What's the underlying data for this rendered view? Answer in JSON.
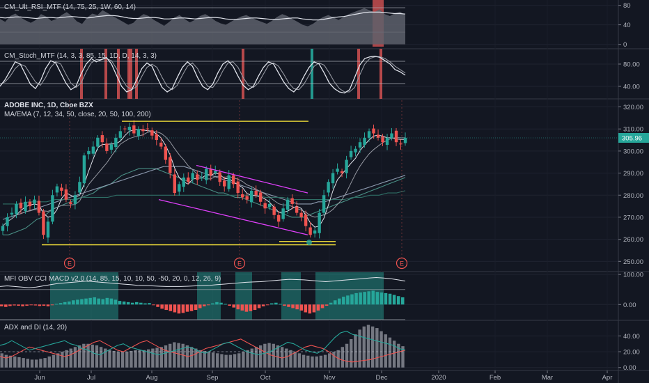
{
  "chart_data": [
    {
      "type": "line",
      "title": "CM_Ult_RSI_MTF (14, 75, 25, 1W, 60, 14)",
      "y_ticks": [
        "80",
        "40",
        "0"
      ],
      "y_tick_values": [
        80,
        40,
        0
      ],
      "ylim": [
        -2,
        88
      ],
      "series": [
        {
          "values": [
            52,
            46,
            58,
            63,
            55,
            49,
            44,
            50,
            62,
            57,
            48,
            52,
            60,
            66,
            58,
            47,
            42,
            55,
            63,
            60,
            70,
            64,
            58,
            52,
            46,
            40,
            44,
            55,
            62,
            58,
            50,
            44,
            38,
            46,
            55,
            60,
            52,
            45,
            50,
            58,
            62,
            56,
            48,
            43,
            40,
            46,
            52,
            57,
            60,
            55,
            50,
            46,
            42,
            48,
            56,
            62,
            58,
            52,
            46,
            40,
            37,
            42,
            50,
            56,
            60,
            55,
            50,
            56,
            62,
            66,
            70,
            74,
            70,
            66,
            72,
            62,
            58,
            64,
            67,
            60
          ]
        },
        {
          "values": [
            55,
            54,
            55,
            56,
            56,
            55,
            54,
            53,
            54,
            55,
            55,
            54,
            55,
            56,
            57,
            56,
            55,
            54,
            55,
            57,
            58,
            59,
            59,
            58,
            56,
            54,
            53,
            53,
            54,
            55,
            55,
            54,
            52,
            52,
            53,
            54,
            54,
            53,
            52,
            53,
            54,
            55,
            55,
            54,
            52,
            51,
            51,
            52,
            53,
            54,
            54,
            53,
            52,
            51,
            51,
            52,
            53,
            54,
            54,
            52,
            51,
            50,
            50,
            51,
            53,
            55,
            56,
            57,
            59,
            61,
            63,
            65,
            66,
            66,
            66,
            65,
            64,
            63,
            63,
            62
          ]
        }
      ],
      "levels": [
        75,
        25
      ],
      "highlight_color": "#e05555"
    },
    {
      "type": "line",
      "title": "CM_Stoch_MTF (14, 3, 3, 85, 15, 1D, D, 14, 3, 3)",
      "y_ticks": [
        "80.00",
        "40.00"
      ],
      "y_tick_values": [
        80,
        40
      ],
      "ylim": [
        20,
        105
      ],
      "series": [
        {
          "values": [
            40,
            52,
            68,
            84,
            80,
            62,
            44,
            36,
            50,
            72,
            86,
            82,
            64,
            46,
            34,
            40,
            62,
            80,
            90,
            84,
            88,
            92,
            80,
            60,
            40,
            30,
            34,
            52,
            72,
            82,
            76,
            56,
            38,
            30,
            36,
            56,
            74,
            84,
            76,
            56,
            40,
            34,
            44,
            64,
            80,
            86,
            76,
            58,
            42,
            34,
            40,
            58,
            74,
            84,
            80,
            64,
            48,
            36,
            30,
            40,
            58,
            74,
            84,
            80,
            64,
            46,
            36,
            30,
            28,
            34,
            56,
            78,
            90,
            93,
            94,
            92,
            86,
            80,
            70,
            66,
            60
          ]
        },
        {
          "values": [
            44,
            48,
            58,
            72,
            80,
            76,
            62,
            48,
            42,
            56,
            74,
            84,
            80,
            62,
            46,
            38,
            46,
            66,
            82,
            88,
            88,
            90,
            86,
            72,
            54,
            40,
            34,
            40,
            58,
            74,
            80,
            74,
            56,
            40,
            34,
            42,
            60,
            76,
            82,
            72,
            54,
            40,
            38,
            50,
            68,
            82,
            84,
            74,
            56,
            42,
            38,
            46,
            62,
            78,
            82,
            76,
            62,
            46,
            36,
            34,
            44,
            60,
            76,
            82,
            78,
            64,
            48,
            36,
            30,
            30,
            38,
            60,
            80,
            90,
            93,
            93,
            90,
            84,
            76,
            70,
            64
          ]
        }
      ],
      "levels": [
        85,
        45
      ],
      "bar_color": "#e05555",
      "cross_color": "#26a69a"
    },
    {
      "type": "candlestick",
      "title": "ADOBE INC, 1D, Cboe BZX",
      "subtitle": "MA/EMA (7, 12, 34, 50, close, 20, 50, 100, 200)",
      "y_ticks": [
        "320.00",
        "310.00",
        "300.00",
        "290.00",
        "280.00",
        "270.00",
        "260.00",
        "250.00"
      ],
      "y_tick_values": [
        320,
        310,
        300,
        290,
        280,
        270,
        260,
        250
      ],
      "ylim": [
        246,
        323
      ],
      "last_price": "305.96",
      "last_price_value": 305.96,
      "closes": [
        266,
        270,
        272,
        276,
        274,
        277,
        275,
        278,
        272,
        262,
        268,
        280,
        284,
        282,
        278,
        276,
        280,
        286,
        298,
        300,
        302,
        306,
        304,
        300,
        303,
        306,
        309,
        310,
        311,
        308,
        310,
        309,
        310,
        307,
        305,
        302,
        296,
        290,
        281,
        285,
        288,
        286,
        290,
        287,
        288,
        292,
        289,
        291,
        286,
        284,
        289,
        285,
        281,
        279,
        278,
        282,
        280,
        277,
        274,
        276,
        271,
        268,
        274,
        278,
        276,
        272,
        270,
        266,
        262,
        264,
        272,
        280,
        286,
        290,
        292,
        290,
        296,
        300,
        301,
        304,
        306,
        309,
        308,
        306,
        304,
        306,
        308,
        304,
        303,
        306
      ],
      "earnings_markers": [
        "E",
        "E",
        "E"
      ],
      "candle_up_color": "#26a69a",
      "candle_down_color": "#ef5350",
      "support_color": "#ffeb3b",
      "channel_color": "#e040fb",
      "ma_series": [
        {
          "values": [
            262,
            262,
            263,
            264,
            265,
            267,
            269,
            270,
            272,
            274,
            275,
            276,
            277,
            278,
            279,
            280,
            281,
            283,
            284,
            285,
            287,
            289,
            290,
            291,
            292,
            292,
            292,
            292,
            291,
            290,
            289,
            288,
            287,
            286,
            285,
            284,
            283,
            282,
            281,
            281,
            280,
            279,
            279,
            278,
            277,
            276,
            275,
            274,
            273,
            272,
            271,
            270,
            270,
            270,
            271,
            272,
            273,
            274,
            275,
            276,
            277,
            278,
            279,
            280,
            281,
            282,
            283,
            284,
            285,
            286,
            287,
            288
          ]
        },
        {
          "values": [
            269,
            270,
            271,
            272,
            273,
            274,
            275,
            276,
            277,
            278,
            279,
            280,
            281,
            282,
            283,
            284,
            285,
            286,
            287,
            288,
            289,
            290,
            291,
            292,
            293,
            293,
            293,
            293,
            292,
            291,
            290,
            289,
            288,
            287,
            286,
            285,
            284,
            283,
            282,
            281,
            280,
            279,
            278,
            277,
            276,
            276,
            276,
            277,
            277,
            278,
            279,
            280,
            281,
            282,
            283,
            284,
            285,
            286,
            287,
            288,
            289
          ]
        },
        {
          "values": [
            276,
            276,
            276,
            277,
            277,
            277,
            278,
            278,
            278,
            279,
            279,
            279,
            279,
            280,
            280,
            280,
            280,
            280,
            280,
            280,
            280,
            280,
            280,
            280,
            280,
            280,
            280,
            280,
            280,
            280,
            279,
            279,
            279,
            278,
            278,
            278,
            278,
            278,
            278,
            278,
            279,
            279,
            280,
            280,
            281,
            281,
            282
          ]
        }
      ]
    },
    {
      "type": "bar",
      "title": "MFI OBV CCI MACD v2.0 (14, 85, 15, 10, 10, 50, -50, 20, 0, 12, 26, 9)",
      "y_ticks": [
        "100.00",
        "0.00"
      ],
      "y_tick_values": [
        100,
        0
      ],
      "ylim": [
        -48,
        105
      ],
      "histogram": [
        -6,
        -8,
        -5,
        -3,
        -4,
        -6,
        -4,
        -2,
        -3,
        -5,
        -4,
        -6,
        -2,
        2,
        5,
        8,
        10,
        14,
        16,
        18,
        20,
        22,
        24,
        20,
        18,
        22,
        20,
        16,
        12,
        10,
        8,
        6,
        8,
        6,
        4,
        5,
        -2,
        -8,
        -14,
        -18,
        -22,
        -26,
        -30,
        -28,
        -24,
        -22,
        -18,
        -12,
        -6,
        -2,
        4,
        8,
        6,
        2,
        -4,
        -10,
        -16,
        -20,
        -24,
        -22,
        -18,
        -12,
        -6,
        -2,
        4,
        6,
        2,
        -4,
        -8,
        -12,
        -16,
        -20,
        -26,
        -30,
        -26,
        -20,
        -12,
        -4,
        6,
        14,
        20,
        26,
        30,
        34,
        38,
        40,
        42,
        44,
        46,
        42,
        40,
        38,
        36,
        32,
        28,
        24
      ],
      "overlay": [
        60,
        62,
        60,
        58,
        56,
        58,
        62,
        66,
        70,
        72,
        74,
        76,
        78,
        76,
        74,
        72,
        70,
        68,
        66,
        64,
        63,
        62,
        61,
        60,
        60,
        60,
        61,
        62,
        63,
        64,
        66,
        68,
        70,
        72,
        74,
        75,
        76,
        78,
        80,
        82,
        84,
        83,
        82,
        80,
        78,
        76,
        78,
        80,
        82,
        84,
        86,
        88,
        90,
        88,
        86,
        82,
        78
      ],
      "levels": [
        50,
        -50
      ],
      "zone_color": "#26a69a",
      "pos_color": "#26a69a",
      "neg_color": "#ef5350"
    },
    {
      "type": "line",
      "title": "ADX and DI (14, 20)",
      "y_ticks": [
        "40.00",
        "20.00",
        "0.00"
      ],
      "y_tick_values": [
        40,
        20,
        0
      ],
      "ylim": [
        -2,
        58
      ],
      "level": 20,
      "adx": [
        18,
        16,
        15,
        14,
        13,
        12,
        11,
        10,
        10,
        11,
        12,
        14,
        16,
        18,
        20,
        22,
        24,
        26,
        28,
        30,
        30,
        29,
        28,
        26,
        24,
        22,
        21,
        20,
        20,
        20,
        21,
        22,
        22,
        22,
        23,
        24,
        25,
        26,
        28,
        30,
        32,
        31,
        30,
        28,
        26,
        24,
        22,
        21,
        20,
        19,
        18,
        17,
        16,
        16,
        17,
        18,
        20,
        22,
        24,
        26,
        28,
        30,
        31,
        30,
        28,
        26,
        24,
        22,
        20,
        18,
        16,
        15,
        14,
        14,
        15,
        16,
        18,
        20,
        22,
        26,
        30,
        36,
        42,
        48,
        52,
        54,
        52,
        50,
        46,
        42,
        38,
        34,
        30,
        27
      ],
      "di_plus": [
        28,
        30,
        34,
        30,
        26,
        22,
        24,
        26,
        28,
        30,
        32,
        34,
        30,
        28,
        24,
        22,
        18,
        16,
        20,
        24,
        28,
        30,
        26,
        24,
        22,
        20,
        18,
        16,
        18,
        20,
        22,
        24,
        26,
        24,
        20,
        18,
        22,
        26,
        30,
        32,
        28,
        24,
        20,
        18,
        16,
        18,
        20,
        24,
        28,
        32,
        30,
        26,
        22,
        20,
        18,
        22,
        30,
        38,
        44,
        46,
        42,
        40,
        38,
        36,
        34,
        32,
        30,
        28,
        24,
        22
      ],
      "di_minus": [
        14,
        12,
        14,
        18,
        22,
        26,
        24,
        22,
        20,
        18,
        16,
        14,
        16,
        20,
        24,
        28,
        32,
        34,
        30,
        26,
        22,
        20,
        24,
        28,
        32,
        34,
        30,
        26,
        22,
        20,
        18,
        16,
        14,
        16,
        20,
        24,
        26,
        28,
        30,
        32,
        34,
        36,
        32,
        28,
        24,
        20,
        16,
        14,
        12,
        14,
        18,
        22,
        26,
        28,
        26,
        24,
        20,
        14,
        10,
        8,
        7,
        8,
        9,
        10,
        12,
        14,
        16,
        18,
        20,
        22
      ],
      "adx_color": "#9598a1",
      "di_plus_color": "#26a69a",
      "di_minus_color": "#ef5350"
    }
  ],
  "time_axis": {
    "labels": [
      "Jun",
      "Jul",
      "Aug",
      "Sep",
      "Oct",
      "Nov",
      "Dec",
      "2020",
      "Feb",
      "Mar",
      "Apr"
    ]
  }
}
